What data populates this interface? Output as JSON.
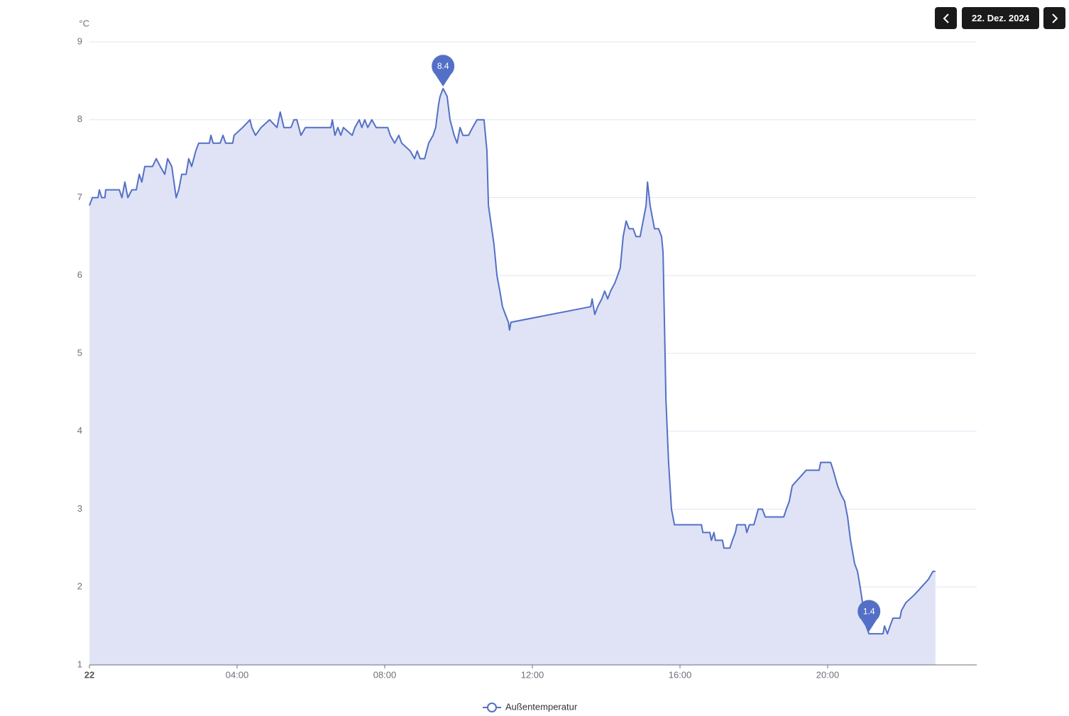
{
  "controls": {
    "date": "22. Dez. 2024"
  },
  "chart_data": {
    "type": "area",
    "y_unit": "°C",
    "x": [
      0,
      0.08,
      0.23,
      0.27,
      0.33,
      0.42,
      0.44,
      0.81,
      0.88,
      0.96,
      1.04,
      1.15,
      1.27,
      1.35,
      1.42,
      1.5,
      1.71,
      1.81,
      1.92,
      2.04,
      2.12,
      2.23,
      2.35,
      2.42,
      2.5,
      2.62,
      2.69,
      2.77,
      2.88,
      2.96,
      3.25,
      3.29,
      3.35,
      3.54,
      3.62,
      3.69,
      3.88,
      3.92,
      4.15,
      4.35,
      4.4,
      4.5,
      4.65,
      4.88,
      5.08,
      5.17,
      5.27,
      5.46,
      5.54,
      5.62,
      5.73,
      5.85,
      6.54,
      6.58,
      6.65,
      6.73,
      6.81,
      6.88,
      7.12,
      7.19,
      7.31,
      7.38,
      7.46,
      7.54,
      7.65,
      7.77,
      8.08,
      8.15,
      8.27,
      8.38,
      8.46,
      8.69,
      8.81,
      8.88,
      8.96,
      9.08,
      9.19,
      9.31,
      9.38,
      9.46,
      9.5,
      9.58,
      9.69,
      9.77,
      9.88,
      9.96,
      10.04,
      10.12,
      10.27,
      10.38,
      10.5,
      10.69,
      10.77,
      10.81,
      10.96,
      11.04,
      11.12,
      11.19,
      11.27,
      11.35,
      11.38,
      11.42,
      13.58,
      13.62,
      13.69,
      13.77,
      13.88,
      13.96,
      14.04,
      14.12,
      14.23,
      14.31,
      14.38,
      14.46,
      14.54,
      14.62,
      14.73,
      14.81,
      14.92,
      15.0,
      15.08,
      15.12,
      15.19,
      15.27,
      15.31,
      15.42,
      15.5,
      15.54,
      15.62,
      15.69,
      15.77,
      15.85,
      16.58,
      16.62,
      16.81,
      16.85,
      16.92,
      16.96,
      17.15,
      17.19,
      17.35,
      17.42,
      17.5,
      17.54,
      17.77,
      17.81,
      17.88,
      18.0,
      18.12,
      18.23,
      18.31,
      18.81,
      18.88,
      18.96,
      19.04,
      19.23,
      19.42,
      19.77,
      19.81,
      20.08,
      20.15,
      20.27,
      20.35,
      20.46,
      20.54,
      20.62,
      20.73,
      20.81,
      20.88,
      21.04,
      21.12,
      21.5,
      21.54,
      21.62,
      21.69,
      21.77,
      21.96,
      22.0,
      22.12,
      22.35,
      22.54,
      22.73,
      22.85,
      22.92
    ],
    "series": [
      {
        "name": "Außentemperatur",
        "color": "#5470c6",
        "fill": "#dfe3f5",
        "values": [
          6.9,
          7.0,
          7.0,
          7.1,
          7.0,
          7.0,
          7.1,
          7.1,
          7.0,
          7.2,
          7.0,
          7.1,
          7.1,
          7.3,
          7.2,
          7.4,
          7.4,
          7.5,
          7.4,
          7.3,
          7.5,
          7.4,
          7.0,
          7.1,
          7.3,
          7.3,
          7.5,
          7.4,
          7.6,
          7.7,
          7.7,
          7.8,
          7.7,
          7.7,
          7.8,
          7.7,
          7.7,
          7.8,
          7.9,
          8.0,
          7.9,
          7.8,
          7.9,
          8.0,
          7.9,
          8.1,
          7.9,
          7.9,
          8.0,
          8.0,
          7.8,
          7.9,
          7.9,
          8.0,
          7.8,
          7.9,
          7.8,
          7.9,
          7.8,
          7.9,
          8.0,
          7.9,
          8.0,
          7.9,
          8.0,
          7.9,
          7.9,
          7.8,
          7.7,
          7.8,
          7.7,
          7.6,
          7.5,
          7.6,
          7.5,
          7.5,
          7.7,
          7.8,
          7.9,
          8.2,
          8.3,
          8.4,
          8.3,
          8.0,
          7.8,
          7.7,
          7.9,
          7.8,
          7.8,
          7.9,
          8.0,
          8.0,
          7.6,
          6.9,
          6.4,
          6.0,
          5.8,
          5.6,
          5.5,
          5.4,
          5.3,
          5.4,
          5.6,
          5.7,
          5.5,
          5.6,
          5.7,
          5.8,
          5.7,
          5.8,
          5.9,
          6.0,
          6.1,
          6.5,
          6.7,
          6.6,
          6.6,
          6.5,
          6.5,
          6.7,
          6.9,
          7.2,
          6.9,
          6.7,
          6.6,
          6.6,
          6.5,
          6.3,
          4.4,
          3.6,
          3.0,
          2.8,
          2.8,
          2.7,
          2.7,
          2.6,
          2.7,
          2.6,
          2.6,
          2.5,
          2.5,
          2.6,
          2.7,
          2.8,
          2.8,
          2.7,
          2.8,
          2.8,
          3.0,
          3.0,
          2.9,
          2.9,
          3.0,
          3.1,
          3.3,
          3.4,
          3.5,
          3.5,
          3.6,
          3.6,
          3.5,
          3.3,
          3.2,
          3.1,
          2.9,
          2.6,
          2.3,
          2.2,
          2.0,
          1.5,
          1.4,
          1.4,
          1.5,
          1.4,
          1.5,
          1.6,
          1.6,
          1.7,
          1.8,
          1.9,
          2.0,
          2.1,
          2.2,
          2.2
        ]
      }
    ],
    "markers": [
      {
        "x": 9.58,
        "value": 8.4
      },
      {
        "x": 21.12,
        "value": 1.4
      }
    ],
    "xlim": [
      0,
      24
    ],
    "ylim": [
      1,
      9
    ],
    "xticks": [
      {
        "value": 0,
        "label": "22"
      },
      {
        "value": 4,
        "label": "04:00"
      },
      {
        "value": 8,
        "label": "08:00"
      },
      {
        "value": 12,
        "label": "12:00"
      },
      {
        "value": 16,
        "label": "16:00"
      },
      {
        "value": 20,
        "label": "20:00"
      }
    ],
    "yticks": [
      1,
      2,
      3,
      4,
      5,
      6,
      7,
      8,
      9
    ],
    "grid": true
  }
}
